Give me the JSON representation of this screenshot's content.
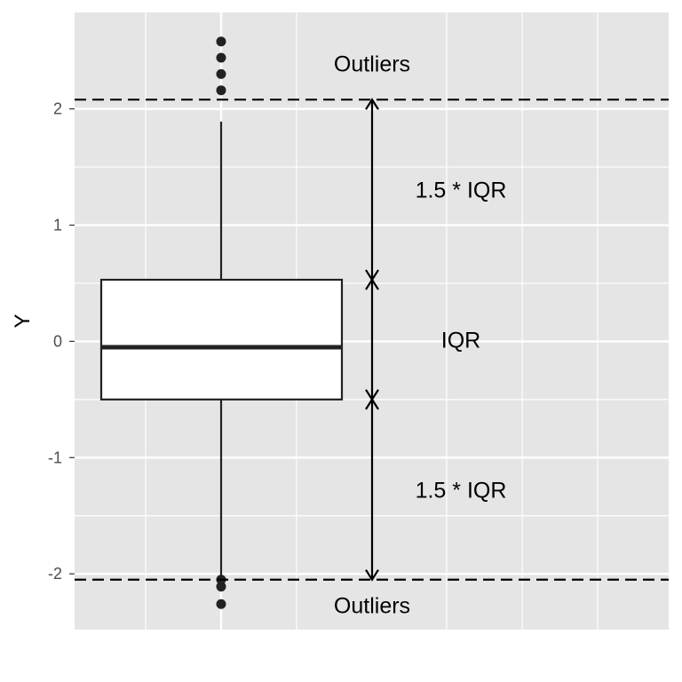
{
  "chart_data": {
    "type": "box",
    "ylabel": "Y",
    "xlabel": "",
    "ylim": [
      -2.48,
      2.83
    ],
    "yticks": [
      -2,
      -1,
      0,
      1,
      2
    ],
    "ytick_labels": [
      "-2",
      "-1",
      "0",
      "1",
      "2"
    ],
    "grid": true,
    "colors": {
      "panel": "#e5e5e5",
      "grid": "#ffffff",
      "box_fill": "#ffffff",
      "line": "#222222"
    },
    "box": {
      "q1": -0.5,
      "median": -0.05,
      "q3": 0.53,
      "whisker_low": -2.03,
      "whisker_high": 1.89,
      "outliers": [
        2.58,
        2.44,
        2.3,
        2.16,
        -2.05,
        -2.11,
        -2.26
      ]
    },
    "reference_lines": [
      {
        "y": 2.08,
        "style": "dashed"
      },
      {
        "y": -2.05,
        "style": "dashed"
      }
    ],
    "brackets": [
      {
        "from": 0.53,
        "to": 2.08,
        "label": "1.5 * IQR"
      },
      {
        "from": -0.5,
        "to": 0.53,
        "label": "IQR"
      },
      {
        "from": -2.05,
        "to": -0.5,
        "label": "1.5 * IQR"
      }
    ],
    "annotations": [
      {
        "text": "Outliers",
        "y": 2.39
      },
      {
        "text": "Outliers",
        "y": -2.27
      }
    ]
  }
}
